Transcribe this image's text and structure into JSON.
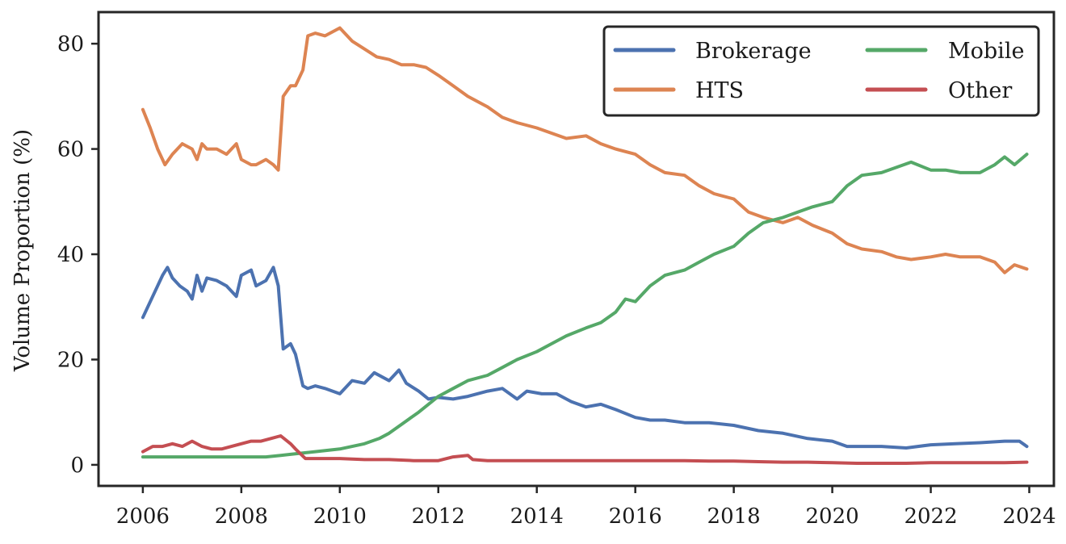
{
  "chart_data": {
    "type": "line",
    "title": "",
    "xlabel": "",
    "ylabel": "Volume Proportion (%)",
    "xlim": [
      2005.1,
      2024.5
    ],
    "ylim": [
      -4,
      86
    ],
    "xticks": [
      2006,
      2008,
      2010,
      2012,
      2014,
      2016,
      2018,
      2020,
      2022,
      2024
    ],
    "yticks": [
      0,
      20,
      40,
      60,
      80
    ],
    "grid": false,
    "legend_position": "top-right",
    "legend_columns": 2,
    "series": [
      {
        "name": "Brokerage",
        "color": "#4c72b0",
        "x": [
          2006.0,
          2006.2,
          2006.4,
          2006.5,
          2006.6,
          2006.75,
          2006.9,
          2007.0,
          2007.1,
          2007.2,
          2007.3,
          2007.5,
          2007.7,
          2007.9,
          2008.0,
          2008.2,
          2008.3,
          2008.5,
          2008.65,
          2008.75,
          2008.85,
          2009.0,
          2009.1,
          2009.25,
          2009.35,
          2009.5,
          2009.7,
          2010.0,
          2010.25,
          2010.5,
          2010.7,
          2011.0,
          2011.2,
          2011.35,
          2011.6,
          2011.8,
          2012.0,
          2012.3,
          2012.6,
          2013.0,
          2013.3,
          2013.6,
          2013.8,
          2014.1,
          2014.4,
          2014.7,
          2015.0,
          2015.3,
          2015.6,
          2016.0,
          2016.3,
          2016.6,
          2017.0,
          2017.5,
          2018.0,
          2018.5,
          2019.0,
          2019.5,
          2020.0,
          2020.3,
          2020.7,
          2021.0,
          2021.5,
          2022.0,
          2022.5,
          2023.0,
          2023.5,
          2023.8,
          2023.95
        ],
        "values": [
          28,
          32,
          36,
          37.5,
          35.5,
          34,
          33,
          31.5,
          36,
          33,
          35.5,
          35,
          34,
          32,
          36,
          37,
          34,
          35,
          37.5,
          34,
          22,
          23,
          21,
          15,
          14.5,
          15,
          14.5,
          13.5,
          16,
          15.5,
          17.5,
          16,
          18,
          15.5,
          14,
          12.5,
          12.8,
          12.5,
          13,
          14,
          14.5,
          12.5,
          14,
          13.5,
          13.5,
          12,
          11,
          11.5,
          10.5,
          9,
          8.5,
          8.5,
          8,
          8,
          7.5,
          6.5,
          6,
          5,
          4.5,
          3.5,
          3.5,
          3.5,
          3.2,
          3.8,
          4,
          4.2,
          4.5,
          4.5,
          3.5
        ]
      },
      {
        "name": "HTS",
        "color": "#dd8452",
        "x": [
          2006.0,
          2006.15,
          2006.3,
          2006.45,
          2006.6,
          2006.8,
          2007.0,
          2007.1,
          2007.2,
          2007.3,
          2007.5,
          2007.7,
          2007.9,
          2008.0,
          2008.2,
          2008.3,
          2008.5,
          2008.65,
          2008.75,
          2008.85,
          2009.0,
          2009.1,
          2009.25,
          2009.35,
          2009.5,
          2009.7,
          2010.0,
          2010.25,
          2010.5,
          2010.75,
          2011.0,
          2011.25,
          2011.5,
          2011.75,
          2012.0,
          2012.3,
          2012.6,
          2013.0,
          2013.3,
          2013.6,
          2014.0,
          2014.3,
          2014.6,
          2015.0,
          2015.3,
          2015.6,
          2016.0,
          2016.3,
          2016.6,
          2017.0,
          2017.3,
          2017.6,
          2018.0,
          2018.3,
          2018.6,
          2019.0,
          2019.3,
          2019.6,
          2020.0,
          2020.3,
          2020.6,
          2021.0,
          2021.3,
          2021.6,
          2022.0,
          2022.3,
          2022.6,
          2023.0,
          2023.3,
          2023.5,
          2023.7,
          2023.95
        ],
        "values": [
          67.5,
          64,
          60,
          57,
          59,
          61,
          60,
          58,
          61,
          60,
          60,
          59,
          61,
          58,
          57,
          57,
          58,
          57,
          56,
          70,
          72,
          72,
          75,
          81.5,
          82,
          81.5,
          83,
          80.5,
          79,
          77.5,
          77,
          76,
          76,
          75.5,
          74,
          72,
          70,
          68,
          66,
          65,
          64,
          63,
          62,
          62.5,
          61,
          60,
          59,
          57,
          55.5,
          55,
          53,
          51.5,
          50.5,
          48,
          47,
          46,
          47,
          45.5,
          44,
          42,
          41,
          40.5,
          39.5,
          39,
          39.5,
          40,
          39.5,
          39.5,
          38.5,
          36.5,
          38,
          37.2
        ]
      },
      {
        "name": "Mobile",
        "color": "#55a868",
        "x": [
          2006.0,
          2006.5,
          2007.0,
          2007.5,
          2008.0,
          2008.5,
          2008.8,
          2009.0,
          2009.5,
          2010.0,
          2010.5,
          2010.8,
          2011.0,
          2011.3,
          2011.6,
          2012.0,
          2012.3,
          2012.6,
          2013.0,
          2013.3,
          2013.6,
          2014.0,
          2014.3,
          2014.6,
          2015.0,
          2015.3,
          2015.6,
          2015.8,
          2016.0,
          2016.3,
          2016.6,
          2017.0,
          2017.3,
          2017.6,
          2018.0,
          2018.3,
          2018.6,
          2019.0,
          2019.3,
          2019.6,
          2020.0,
          2020.3,
          2020.6,
          2021.0,
          2021.3,
          2021.6,
          2022.0,
          2022.3,
          2022.6,
          2023.0,
          2023.3,
          2023.5,
          2023.7,
          2023.95
        ],
        "values": [
          1.5,
          1.5,
          1.5,
          1.5,
          1.5,
          1.5,
          1.8,
          2,
          2.5,
          3,
          4,
          5,
          6,
          8,
          10,
          13,
          14.5,
          16,
          17,
          18.5,
          20,
          21.5,
          23,
          24.5,
          26,
          27,
          29,
          31.5,
          31,
          34,
          36,
          37,
          38.5,
          40,
          41.5,
          44,
          46,
          47,
          48,
          49,
          50,
          53,
          55,
          55.5,
          56.5,
          57.5,
          56,
          56,
          55.5,
          55.5,
          57,
          58.5,
          57,
          59
        ]
      },
      {
        "name": "Other",
        "color": "#c44e52",
        "x": [
          2006.0,
          2006.2,
          2006.4,
          2006.6,
          2006.8,
          2007.0,
          2007.2,
          2007.4,
          2007.6,
          2007.8,
          2008.0,
          2008.2,
          2008.4,
          2008.6,
          2008.8,
          2009.0,
          2009.1,
          2009.3,
          2009.6,
          2010.0,
          2010.5,
          2011.0,
          2011.5,
          2012.0,
          2012.3,
          2012.6,
          2012.7,
          2013.0,
          2013.5,
          2014.0,
          2014.5,
          2015.0,
          2015.5,
          2016.0,
          2016.5,
          2017.0,
          2017.5,
          2018.0,
          2018.5,
          2019.0,
          2019.5,
          2020.0,
          2020.5,
          2021.0,
          2021.5,
          2022.0,
          2022.5,
          2023.0,
          2023.5,
          2023.95
        ],
        "values": [
          2.5,
          3.5,
          3.5,
          4,
          3.5,
          4.5,
          3.5,
          3,
          3,
          3.5,
          4,
          4.5,
          4.5,
          5,
          5.5,
          4,
          3,
          1.2,
          1.2,
          1.2,
          1.0,
          1.0,
          0.8,
          0.8,
          1.5,
          1.8,
          1.0,
          0.8,
          0.8,
          0.8,
          0.8,
          0.8,
          0.8,
          0.8,
          0.8,
          0.8,
          0.7,
          0.7,
          0.6,
          0.5,
          0.5,
          0.4,
          0.3,
          0.3,
          0.3,
          0.4,
          0.4,
          0.4,
          0.4,
          0.5
        ]
      }
    ]
  }
}
